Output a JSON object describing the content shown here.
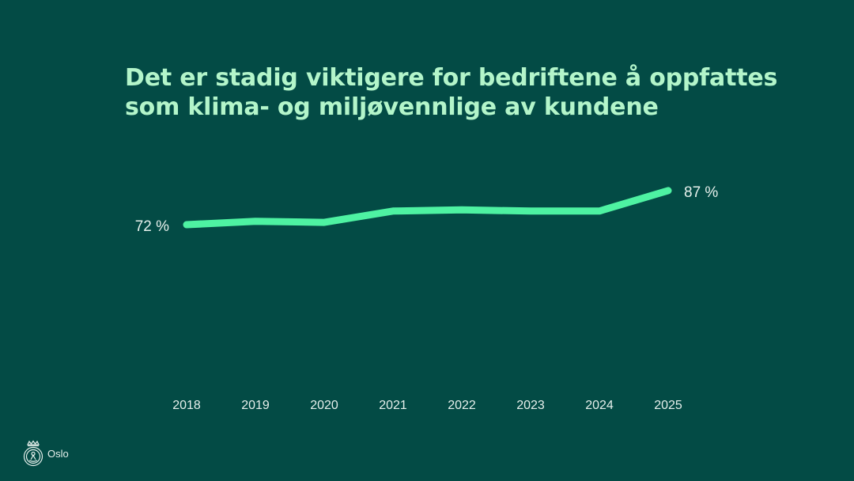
{
  "slide": {
    "title": "Det er stadig viktigere for bedriftene å oppfattes som klima- og miljøvennlige av kundene",
    "logo_text": "Oslo",
    "logo_icon": "oslo-city-seal-icon"
  },
  "colors": {
    "background": "#034b45",
    "title": "#b3f5ca",
    "line": "#4ef2a2",
    "labels": "#e6f0ec"
  },
  "chart_data": {
    "type": "line",
    "title": "Det er stadig viktigere for bedriftene å oppfattes som klima- og miljøvennlige av kundene",
    "xlabel": "",
    "ylabel": "",
    "categories": [
      "2018",
      "2019",
      "2020",
      "2021",
      "2022",
      "2023",
      "2024",
      "2025"
    ],
    "series": [
      {
        "values": [
          72,
          73.5,
          73,
          78,
          78.5,
          78,
          78,
          87
        ]
      }
    ],
    "data_labels": [
      {
        "index": 0,
        "text": "72 %"
      },
      {
        "index": 7,
        "text": "87 %"
      }
    ],
    "ylim": [
      0,
      100
    ],
    "grid": false,
    "legend": "none"
  }
}
